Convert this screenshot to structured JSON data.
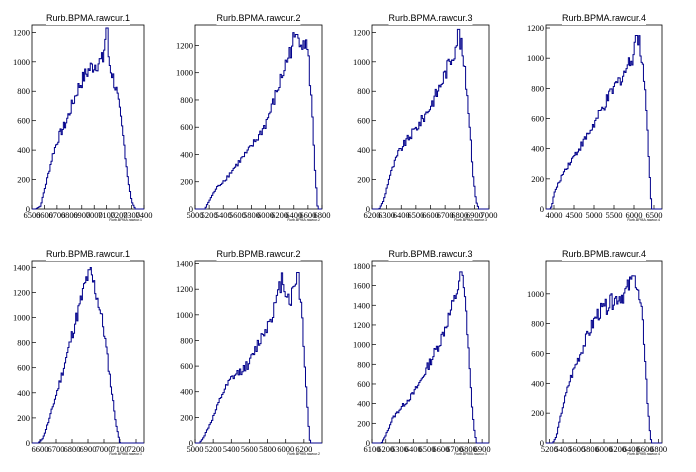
{
  "chart_data": [
    {
      "type": "histogram",
      "title": "Rurb.BPMA.rawcur.1",
      "xlabel_small": "Rurb.BPMA.rawcur.1",
      "xlim": [
        6500,
        7400
      ],
      "ylim": [
        0,
        1250
      ],
      "xticks": [
        6500,
        6600,
        6700,
        6800,
        6900,
        7000,
        7100,
        7200,
        7300,
        7400
      ],
      "yticks": [
        0,
        200,
        400,
        600,
        800,
        1000,
        1200
      ],
      "peak_x": 7100,
      "peak_y": 1230,
      "profile": [
        [
          6530,
          0
        ],
        [
          6570,
          20
        ],
        [
          6620,
          200
        ],
        [
          6670,
          380
        ],
        [
          6720,
          500
        ],
        [
          6770,
          580
        ],
        [
          6820,
          700
        ],
        [
          6870,
          820
        ],
        [
          6920,
          900
        ],
        [
          6970,
          960
        ],
        [
          7020,
          990
        ],
        [
          7070,
          1010
        ],
        [
          7100,
          1230
        ],
        [
          7120,
          1000
        ],
        [
          7150,
          900
        ],
        [
          7180,
          800
        ],
        [
          7210,
          640
        ],
        [
          7240,
          450
        ],
        [
          7270,
          220
        ],
        [
          7300,
          50
        ],
        [
          7330,
          0
        ]
      ]
    },
    {
      "type": "histogram",
      "title": "Rurb.BPMA.rawcur.2",
      "xlabel_small": "Rurb.BPMA.rawcur.2",
      "xlim": [
        5000,
        6800
      ],
      "ylim": [
        0,
        1350
      ],
      "xticks": [
        5000,
        5200,
        5400,
        5600,
        5800,
        6000,
        6200,
        6400,
        6600,
        6800
      ],
      "yticks": [
        0,
        200,
        400,
        600,
        800,
        1000,
        1200
      ],
      "peak_x": 6440,
      "peak_y": 1280,
      "profile": [
        [
          5140,
          0
        ],
        [
          5200,
          60
        ],
        [
          5300,
          150
        ],
        [
          5450,
          230
        ],
        [
          5600,
          330
        ],
        [
          5750,
          420
        ],
        [
          5900,
          530
        ],
        [
          6000,
          620
        ],
        [
          6100,
          760
        ],
        [
          6200,
          920
        ],
        [
          6300,
          1080
        ],
        [
          6400,
          1240
        ],
        [
          6440,
          1280
        ],
        [
          6500,
          1250
        ],
        [
          6560,
          1230
        ],
        [
          6600,
          1150
        ],
        [
          6650,
          800
        ],
        [
          6700,
          300
        ],
        [
          6740,
          0
        ]
      ]
    },
    {
      "type": "histogram",
      "title": "Rurb.BPMA.rawcur.3",
      "xlabel_small": "Rurb.BPMA.rawcur.3",
      "xlim": [
        6200,
        7000
      ],
      "ylim": [
        0,
        1250
      ],
      "xticks": [
        6200,
        6300,
        6400,
        6500,
        6600,
        6700,
        6800,
        6900,
        7000
      ],
      "yticks": [
        0,
        200,
        400,
        600,
        800,
        1000,
        1200
      ],
      "peak_x": 6790,
      "peak_y": 1220,
      "profile": [
        [
          6250,
          0
        ],
        [
          6280,
          60
        ],
        [
          6320,
          220
        ],
        [
          6380,
          380
        ],
        [
          6420,
          440
        ],
        [
          6480,
          520
        ],
        [
          6540,
          600
        ],
        [
          6600,
          700
        ],
        [
          6650,
          800
        ],
        [
          6700,
          920
        ],
        [
          6740,
          1020
        ],
        [
          6770,
          1100
        ],
        [
          6790,
          1220
        ],
        [
          6820,
          1050
        ],
        [
          6850,
          800
        ],
        [
          6870,
          550
        ],
        [
          6890,
          250
        ],
        [
          6910,
          60
        ],
        [
          6930,
          0
        ]
      ]
    },
    {
      "type": "histogram",
      "title": "Rurb.BPMA.rawcur.4",
      "xlabel_small": "Rurb.BPMA.rawcur.4",
      "xlim": [
        3800,
        6700
      ],
      "ylim": [
        0,
        1220
      ],
      "xticks": [
        4000,
        4500,
        5000,
        5500,
        6000,
        6500
      ],
      "yticks": [
        0,
        200,
        400,
        600,
        800,
        1000,
        1200
      ],
      "peak_x": 6050,
      "peak_y": 1150,
      "profile": [
        [
          3900,
          0
        ],
        [
          3950,
          20
        ],
        [
          4000,
          100
        ],
        [
          4250,
          250
        ],
        [
          4500,
          350
        ],
        [
          4750,
          450
        ],
        [
          5000,
          560
        ],
        [
          5250,
          680
        ],
        [
          5500,
          800
        ],
        [
          5750,
          900
        ],
        [
          5950,
          1000
        ],
        [
          6050,
          1150
        ],
        [
          6150,
          1080
        ],
        [
          6250,
          900
        ],
        [
          6320,
          600
        ],
        [
          6380,
          300
        ],
        [
          6420,
          80
        ],
        [
          6450,
          0
        ]
      ]
    },
    {
      "type": "histogram",
      "title": "Rurb.BPMB.rawcur.1",
      "xlabel_small": "Rurb.BPMB.rawcur.1",
      "xlim": [
        6550,
        7250
      ],
      "ylim": [
        0,
        1450
      ],
      "xticks": [
        6600,
        6700,
        6800,
        6900,
        7000,
        7100,
        7200
      ],
      "yticks": [
        0,
        200,
        400,
        600,
        800,
        1000,
        1200,
        1400
      ],
      "peak_x": 6910,
      "peak_y": 1380,
      "profile": [
        [
          6590,
          0
        ],
        [
          6620,
          40
        ],
        [
          6660,
          200
        ],
        [
          6700,
          380
        ],
        [
          6740,
          560
        ],
        [
          6780,
          760
        ],
        [
          6820,
          960
        ],
        [
          6860,
          1150
        ],
        [
          6890,
          1300
        ],
        [
          6910,
          1380
        ],
        [
          6940,
          1250
        ],
        [
          6970,
          1100
        ],
        [
          7000,
          900
        ],
        [
          7030,
          600
        ],
        [
          7060,
          300
        ],
        [
          7080,
          120
        ],
        [
          7100,
          0
        ]
      ]
    },
    {
      "type": "histogram",
      "title": "Rurb.BPMB.rawcur.2",
      "xlabel_small": "Rurb.BPMB.rawcur.2",
      "xlim": [
        5000,
        6400
      ],
      "ylim": [
        0,
        1420
      ],
      "xticks": [
        5000,
        5200,
        5400,
        5600,
        5800,
        6000,
        6200
      ],
      "yticks": [
        0,
        200,
        400,
        600,
        800,
        1000,
        1200,
        1400
      ],
      "peak_x": 6130,
      "peak_y": 1330,
      "profile": [
        [
          5050,
          0
        ],
        [
          5100,
          50
        ],
        [
          5200,
          200
        ],
        [
          5300,
          380
        ],
        [
          5400,
          500
        ],
        [
          5500,
          560
        ],
        [
          5600,
          620
        ],
        [
          5700,
          780
        ],
        [
          5800,
          920
        ],
        [
          5900,
          1100
        ],
        [
          5960,
          1290
        ],
        [
          6000,
          1200
        ],
        [
          6050,
          1100
        ],
        [
          6130,
          1330
        ],
        [
          6180,
          1000
        ],
        [
          6220,
          500
        ],
        [
          6250,
          150
        ],
        [
          6270,
          0
        ]
      ]
    },
    {
      "type": "histogram",
      "title": "Rurb.BPMB.rawcur.3",
      "xlabel_small": "Rurb.BPMB.rawcur.3",
      "xlim": [
        6100,
        6950
      ],
      "ylim": [
        0,
        1850
      ],
      "xticks": [
        6100,
        6200,
        6300,
        6400,
        6500,
        6600,
        6700,
        6800,
        6900
      ],
      "yticks": [
        0,
        200,
        400,
        600,
        800,
        1000,
        1200,
        1400,
        1600,
        1800
      ],
      "peak_x": 6750,
      "peak_y": 1740,
      "profile": [
        [
          6170,
          0
        ],
        [
          6200,
          80
        ],
        [
          6250,
          250
        ],
        [
          6300,
          340
        ],
        [
          6350,
          420
        ],
        [
          6400,
          500
        ],
        [
          6450,
          620
        ],
        [
          6500,
          760
        ],
        [
          6550,
          900
        ],
        [
          6600,
          1050
        ],
        [
          6650,
          1250
        ],
        [
          6700,
          1450
        ],
        [
          6750,
          1740
        ],
        [
          6780,
          1400
        ],
        [
          6800,
          1000
        ],
        [
          6820,
          500
        ],
        [
          6840,
          150
        ],
        [
          6860,
          0
        ]
      ]
    },
    {
      "type": "histogram",
      "title": "Rurb.BPMB.rawcur.4",
      "xlabel_small": "Rurb.BPMB.rawcur.4",
      "xlim": [
        5150,
        6850
      ],
      "ylim": [
        0,
        1220
      ],
      "xticks": [
        5200,
        5400,
        5600,
        5800,
        6000,
        6200,
        6400,
        6600,
        6800
      ],
      "yticks": [
        0,
        200,
        400,
        600,
        800,
        1000
      ],
      "peak_x": 6440,
      "peak_y": 1120,
      "profile": [
        [
          5250,
          0
        ],
        [
          5300,
          40
        ],
        [
          5400,
          250
        ],
        [
          5500,
          420
        ],
        [
          5600,
          540
        ],
        [
          5700,
          650
        ],
        [
          5800,
          760
        ],
        [
          5900,
          860
        ],
        [
          6000,
          900
        ],
        [
          6100,
          940
        ],
        [
          6200,
          980
        ],
        [
          6300,
          1000
        ],
        [
          6400,
          1080
        ],
        [
          6440,
          1120
        ],
        [
          6500,
          1000
        ],
        [
          6560,
          850
        ],
        [
          6600,
          600
        ],
        [
          6640,
          250
        ],
        [
          6680,
          40
        ],
        [
          6700,
          0
        ]
      ]
    }
  ]
}
